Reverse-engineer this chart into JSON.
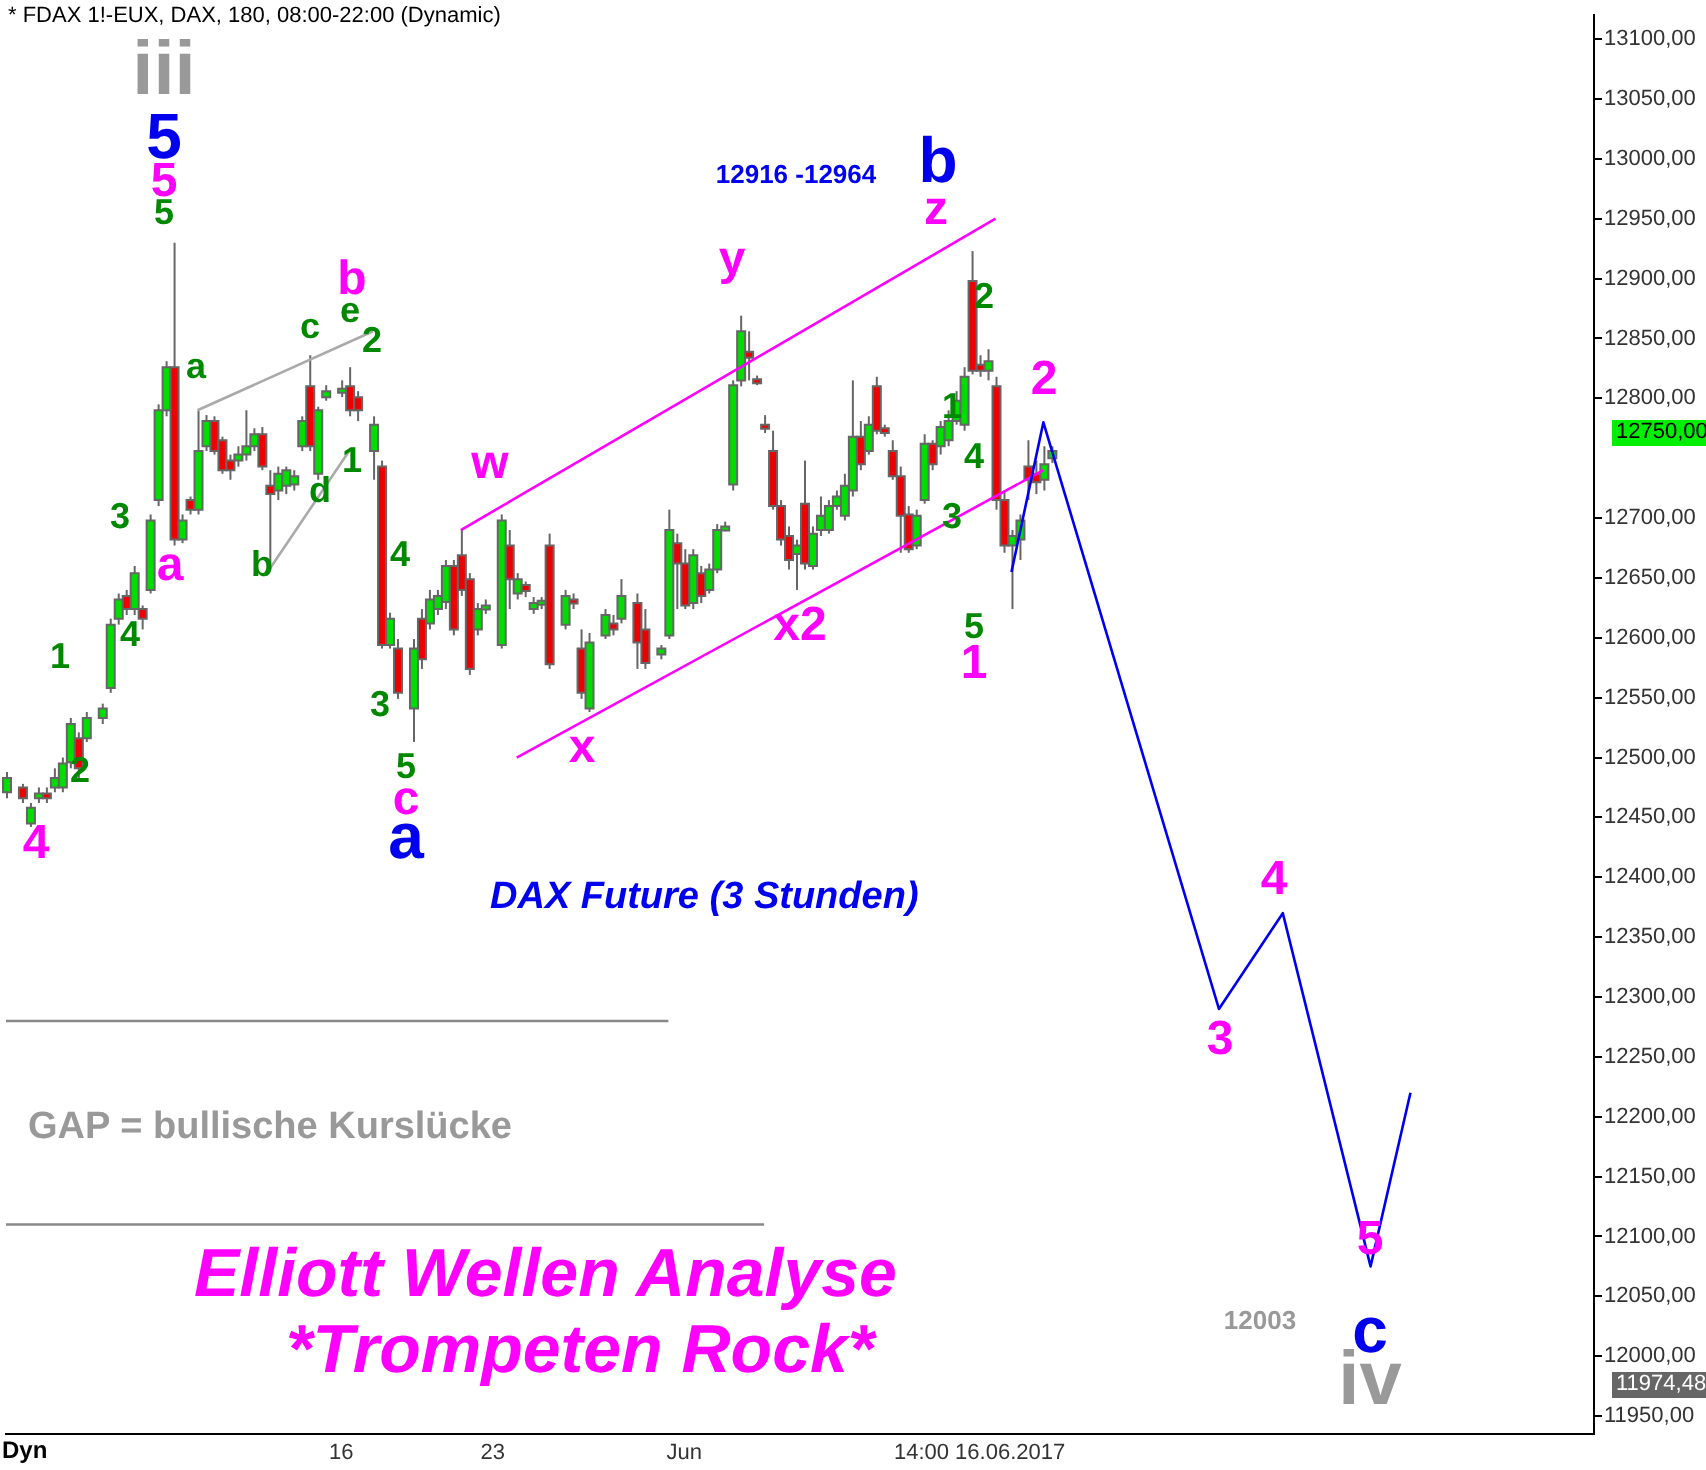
{
  "chart_data": {
    "type": "candlestick",
    "title": "* FDAX 1!-EUX, DAX, 180, 08:00-22:00 (Dynamic)",
    "subtitle": "DAX Future (3 Stunden)",
    "categories": [
      null,
      null,
      null,
      null,
      null,
      null,
      null,
      null,
      null,
      null,
      null,
      null,
      null,
      null,
      null,
      null,
      null,
      null,
      null,
      null,
      null,
      null,
      null,
      null,
      null,
      null,
      null,
      null,
      null,
      null,
      null,
      null,
      null,
      null,
      null,
      null,
      null,
      null,
      null,
      null,
      null,
      null,
      "16",
      null,
      null,
      null,
      null,
      null,
      null,
      null,
      null,
      null,
      null,
      null,
      null,
      null,
      null,
      null,
      null,
      null,
      null,
      "23",
      null,
      null,
      null,
      null,
      null,
      null,
      null,
      null,
      null,
      null,
      null,
      null,
      null,
      null,
      null,
      null,
      null,
      null,
      null,
      null,
      null,
      null,
      null,
      "Jun",
      null,
      null,
      null,
      null,
      null,
      null,
      null,
      null,
      null,
      null,
      null,
      null,
      null,
      null,
      null,
      null,
      null,
      null,
      null,
      null,
      null,
      null,
      null,
      null,
      null,
      null,
      null,
      null,
      null,
      null,
      null,
      null,
      null,
      null,
      null,
      null,
      "14:00 16.06.2017",
      null,
      null,
      null,
      null,
      null,
      null,
      null,
      null,
      null,
      null,
      null,
      null,
      null,
      null,
      null,
      null,
      null,
      null,
      null,
      null,
      null,
      null,
      null,
      null,
      null,
      null,
      null,
      null,
      null,
      null,
      null,
      null,
      null,
      null,
      null,
      null,
      null,
      null,
      null,
      null,
      null,
      null,
      null,
      null,
      null,
      null,
      null,
      null,
      null,
      null,
      null,
      null,
      null,
      null,
      null,
      null,
      null,
      null,
      null,
      null,
      null,
      null,
      null,
      null,
      null,
      null,
      null,
      null,
      null,
      null,
      null,
      null,
      null,
      null,
      null,
      null,
      null
    ],
    "ohlc": [
      [
        12471,
        12488,
        12466,
        12483
      ],
      null,
      [
        12475,
        12478,
        12462,
        12466
      ],
      [
        12445,
        12462,
        12442,
        12458
      ],
      [
        12466,
        12475,
        12462,
        12470
      ],
      [
        12470,
        12475,
        12462,
        12466
      ],
      [
        12475,
        12491,
        12471,
        12483
      ],
      [
        12475,
        12500,
        12471,
        12495
      ],
      [
        12496,
        12533,
        12491,
        12528
      ],
      [
        12516,
        12521,
        12483,
        12491
      ],
      [
        12516,
        12538,
        12513,
        12533
      ],
      null,
      [
        12533,
        12545,
        12528,
        12541
      ],
      [
        12558,
        12616,
        12554,
        12611
      ],
      [
        12616,
        12637,
        12611,
        12632
      ],
      [
        12635,
        12640,
        12619,
        12624
      ],
      [
        12624,
        12660,
        12619,
        12654
      ],
      [
        12624,
        12627,
        12607,
        12616
      ],
      [
        12640,
        12703,
        12637,
        12698
      ],
      [
        12715,
        12795,
        12710,
        12790
      ],
      [
        12790,
        12831,
        12785,
        12826
      ],
      [
        12826,
        12930,
        12677,
        12682
      ],
      [
        12682,
        12703,
        12679,
        12698
      ],
      [
        12715,
        12718,
        12703,
        12707
      ],
      [
        12707,
        12790,
        12703,
        12756
      ],
      [
        12760,
        12786,
        12756,
        12781
      ],
      [
        12781,
        12785,
        12753,
        12756
      ],
      [
        12765,
        12768,
        12737,
        12740
      ],
      [
        12748,
        12753,
        12732,
        12740
      ],
      [
        12748,
        12760,
        12743,
        12753
      ],
      [
        12753,
        12790,
        12748,
        12760
      ],
      [
        12760,
        12775,
        12756,
        12770
      ],
      [
        12770,
        12776,
        12740,
        12743
      ],
      [
        12727,
        12740,
        12657,
        12720
      ],
      [
        12723,
        12743,
        12715,
        12737
      ],
      [
        12727,
        12743,
        12720,
        12740
      ],
      [
        12728,
        12740,
        12723,
        12735
      ],
      [
        12760,
        12785,
        12756,
        12781
      ],
      [
        12810,
        12836,
        12756,
        12760
      ],
      [
        12737,
        12793,
        12732,
        12790
      ],
      [
        12801,
        12811,
        12798,
        12806
      ],
      null,
      [
        12806,
        12815,
        12801,
        12808
      ],
      [
        12810,
        12826,
        12785,
        12790
      ],
      [
        12801,
        12806,
        12781,
        12790
      ],
      null,
      [
        12756,
        12785,
        12732,
        12778
      ],
      [
        12743,
        12748,
        12591,
        12594
      ],
      [
        12594,
        12621,
        12591,
        12616
      ],
      [
        12591,
        12599,
        12549,
        12554
      ],
      null,
      [
        12541,
        12599,
        12513,
        12591
      ],
      [
        12616,
        12624,
        12574,
        12582
      ],
      [
        12612,
        12640,
        12607,
        12632
      ],
      [
        12624,
        12640,
        12619,
        12635
      ],
      [
        12630,
        12665,
        12624,
        12660
      ],
      [
        12660,
        12665,
        12602,
        12607
      ],
      [
        12669,
        12690,
        12635,
        12640
      ],
      [
        12649,
        12654,
        12569,
        12574
      ],
      [
        12607,
        12629,
        12602,
        12624
      ],
      [
        12624,
        12632,
        12620,
        12627
      ],
      null,
      [
        12594,
        12703,
        12591,
        12698
      ],
      [
        12677,
        12690,
        12624,
        12649
      ],
      [
        12637,
        12654,
        12632,
        12649
      ],
      [
        12644,
        12647,
        12634,
        12639
      ],
      [
        12624,
        12634,
        12620,
        12629
      ],
      [
        12629,
        12634,
        12624,
        12631
      ],
      [
        12677,
        12687,
        12574,
        12578
      ],
      null,
      [
        12611,
        12640,
        12607,
        12635
      ],
      [
        12632,
        12637,
        12624,
        12629
      ],
      [
        12591,
        12607,
        12549,
        12554
      ],
      [
        12541,
        12604,
        12538,
        12596
      ],
      null,
      [
        12602,
        12624,
        12599,
        12619
      ],
      [
        12612,
        12619,
        12602,
        12607
      ],
      [
        12616,
        12649,
        12612,
        12635
      ],
      null,
      [
        12629,
        12637,
        12574,
        12596
      ],
      [
        12607,
        12624,
        12574,
        12579
      ],
      null,
      [
        12586,
        12594,
        12582,
        12591
      ],
      [
        12602,
        12707,
        12599,
        12690
      ],
      [
        12679,
        12687,
        12624,
        12662
      ],
      [
        12662,
        12674,
        12624,
        12627
      ],
      [
        12629,
        12674,
        12624,
        12669
      ],
      [
        12654,
        12660,
        12629,
        12635
      ],
      [
        12640,
        12662,
        12637,
        12657
      ],
      [
        12657,
        12695,
        12654,
        12690
      ],
      [
        12690,
        12697,
        12689,
        12693
      ],
      [
        12728,
        12815,
        12723,
        12811
      ],
      [
        12815,
        12869,
        12810,
        12856
      ],
      [
        12839,
        12856,
        12815,
        12834
      ],
      [
        12816,
        12819,
        12811,
        12813
      ],
      [
        12778,
        12786,
        12771,
        12775
      ],
      [
        12756,
        12773,
        12707,
        12710
      ],
      [
        12710,
        12715,
        12677,
        12682
      ],
      [
        12685,
        12693,
        12657,
        12665
      ],
      [
        12670,
        12682,
        12640,
        12677
      ],
      [
        12712,
        12748,
        12657,
        12662
      ],
      [
        12660,
        12693,
        12657,
        12687
      ],
      [
        12690,
        12718,
        12685,
        12702
      ],
      [
        12690,
        12715,
        12687,
        12710
      ],
      [
        12710,
        12723,
        12707,
        12718
      ],
      [
        12702,
        12737,
        12698,
        12727
      ],
      [
        12723,
        12815,
        12718,
        12768
      ],
      [
        12768,
        12781,
        12740,
        12745
      ],
      [
        12756,
        12785,
        12753,
        12778
      ],
      [
        12810,
        12818,
        12770,
        12773
      ],
      [
        12775,
        12778,
        12768,
        12771
      ],
      [
        12756,
        12765,
        12732,
        12735
      ],
      [
        12735,
        12743,
        12671,
        12702
      ],
      [
        12703,
        12710,
        12671,
        12674
      ],
      [
        12677,
        12707,
        12674,
        12702
      ],
      [
        12715,
        12770,
        12712,
        12762
      ],
      [
        12762,
        12765,
        12740,
        12745
      ],
      [
        12760,
        12781,
        12753,
        12776
      ],
      [
        12765,
        12790,
        12760,
        12781
      ],
      [
        12781,
        12806,
        12778,
        12798
      ],
      [
        12778,
        12826,
        12773,
        12818
      ],
      [
        12898,
        12923,
        12820,
        12823
      ],
      [
        12828,
        12836,
        12818,
        12823
      ],
      [
        12823,
        12841,
        12815,
        12831
      ],
      [
        12810,
        12818,
        12707,
        12715
      ],
      [
        12715,
        12723,
        12671,
        12677
      ],
      [
        12677,
        12690,
        12624,
        12685
      ],
      [
        12682,
        12703,
        12665,
        12698
      ],
      [
        12743,
        12765,
        12715,
        12732
      ],
      [
        12737,
        12748,
        12720,
        12730
      ],
      [
        12732,
        12760,
        12723,
        12745
      ],
      [
        12750,
        12760,
        12746,
        12756
      ],
      null,
      null,
      null,
      null,
      null,
      null,
      null,
      null,
      null,
      null,
      null,
      null,
      null,
      null,
      null,
      null,
      null,
      null,
      null,
      null,
      null,
      null,
      null,
      null,
      null,
      null,
      null,
      null,
      null,
      null,
      null,
      null,
      null,
      null,
      null,
      null,
      null,
      null,
      null,
      null,
      null,
      null,
      null,
      null,
      null,
      null,
      null,
      null,
      null,
      null,
      null,
      null,
      null,
      null,
      null,
      null,
      null,
      null,
      null,
      null,
      null,
      null,
      null,
      null,
      null,
      null,
      null,
      null
    ],
    "series": [
      {
        "type": "line",
        "color": "#0000ee",
        "values": [
          null,
          null,
          null,
          null,
          null,
          null,
          null,
          null,
          null,
          null,
          null,
          null,
          null,
          null,
          null,
          null,
          null,
          null,
          null,
          null,
          null,
          null,
          null,
          null,
          null,
          null,
          null,
          null,
          null,
          null,
          null,
          null,
          null,
          null,
          null,
          null,
          null,
          null,
          null,
          null,
          null,
          null,
          null,
          null,
          null,
          null,
          null,
          null,
          null,
          null,
          null,
          null,
          null,
          null,
          null,
          null,
          null,
          null,
          null,
          null,
          null,
          null,
          null,
          null,
          null,
          null,
          null,
          null,
          null,
          null,
          null,
          null,
          null,
          null,
          null,
          null,
          null,
          null,
          null,
          null,
          null,
          null,
          null,
          null,
          null,
          null,
          null,
          null,
          null,
          null,
          null,
          null,
          null,
          null,
          null,
          null,
          null,
          null,
          null,
          null,
          null,
          null,
          null,
          null,
          null,
          null,
          null,
          null,
          null,
          null,
          null,
          null,
          null,
          null,
          null,
          null,
          null,
          null,
          null,
          null,
          null,
          null,
          null,
          null,
          null,
          null,
          12655,
          null,
          null,
          null,
          12780,
          null,
          null,
          null,
          null,
          null,
          null,
          null,
          null,
          null,
          null,
          null,
          null,
          null,
          null,
          null,
          null,
          null,
          null,
          null,
          null,
          null,
          12290,
          null,
          null,
          null,
          null,
          null,
          null,
          null,
          12370,
          null,
          null,
          null,
          null,
          null,
          null,
          null,
          null,
          null,
          null,
          12075,
          null,
          null,
          null,
          null,
          12220,
          null,
          null,
          null,
          null,
          null,
          null,
          null,
          null,
          null,
          null,
          null,
          null,
          null,
          null,
          null,
          null,
          null,
          null,
          null,
          null,
          null,
          null,
          null
        ]
      },
      {
        "type": "line",
        "color": "#ff00ff",
        "values": [
          null,
          null,
          null,
          null,
          null,
          null,
          null,
          null,
          null,
          null,
          null,
          null,
          null,
          null,
          null,
          null,
          null,
          null,
          null,
          null,
          null,
          null,
          null,
          null,
          null,
          null,
          null,
          null,
          null,
          null,
          null,
          null,
          null,
          null,
          null,
          null,
          null,
          null,
          null,
          null,
          null,
          null,
          null,
          null,
          null,
          null,
          null,
          null,
          null,
          null,
          null,
          null,
          null,
          null,
          null,
          null,
          null,
          12690,
          null,
          null,
          null,
          null,
          null,
          null,
          null,
          null,
          null,
          null,
          null,
          null,
          null,
          null,
          null,
          null,
          null,
          null,
          null,
          null,
          null,
          null,
          null,
          null,
          null,
          null,
          null,
          null,
          null,
          null,
          null,
          null,
          null,
          null,
          null,
          null,
          null,
          null,
          null,
          null,
          null,
          null,
          null,
          null,
          null,
          null,
          null,
          null,
          null,
          null,
          null,
          null,
          null,
          null,
          null,
          null,
          null,
          null,
          null,
          null,
          null,
          null,
          null,
          null,
          null,
          null,
          12950,
          null,
          null,
          null,
          null,
          null,
          null,
          null,
          null,
          null,
          null,
          null,
          null,
          null,
          null,
          null,
          null,
          null,
          null,
          null,
          null,
          null,
          null,
          null,
          null,
          null,
          null,
          null,
          null,
          null,
          null,
          null,
          null,
          null,
          null,
          null,
          null,
          null,
          null,
          null,
          null,
          null,
          null,
          null,
          null,
          null,
          null,
          null,
          null,
          null,
          null,
          null,
          null,
          null,
          null,
          null,
          null,
          null,
          null,
          null,
          null,
          null,
          null,
          null,
          null,
          null,
          null,
          null,
          null,
          null,
          null,
          null,
          null,
          null,
          null,
          null
        ]
      },
      {
        "type": "line",
        "color": "#ff00ff",
        "values": [
          null,
          null,
          null,
          null,
          null,
          null,
          null,
          null,
          null,
          null,
          null,
          null,
          null,
          null,
          null,
          null,
          null,
          null,
          null,
          null,
          null,
          null,
          null,
          null,
          null,
          null,
          null,
          null,
          null,
          null,
          null,
          null,
          null,
          null,
          null,
          null,
          null,
          null,
          null,
          null,
          null,
          null,
          null,
          null,
          null,
          null,
          null,
          null,
          null,
          null,
          null,
          null,
          null,
          null,
          null,
          null,
          null,
          null,
          null,
          null,
          null,
          null,
          null,
          null,
          12500,
          null,
          null,
          null,
          null,
          null,
          null,
          null,
          null,
          null,
          null,
          null,
          null,
          null,
          null,
          null,
          null,
          null,
          null,
          null,
          null,
          null,
          null,
          null,
          null,
          null,
          null,
          null,
          null,
          null,
          null,
          null,
          null,
          null,
          null,
          null,
          null,
          null,
          null,
          null,
          null,
          null,
          null,
          null,
          null,
          null,
          null,
          null,
          null,
          null,
          null,
          null,
          null,
          null,
          null,
          null,
          null,
          null,
          null,
          null,
          null,
          null,
          null,
          null,
          null,
          null,
          12740,
          null,
          null,
          null,
          null,
          null,
          null,
          null,
          null,
          null,
          null,
          null,
          null,
          null,
          null,
          null,
          null,
          null,
          null,
          null,
          null,
          null,
          null,
          null,
          null,
          null,
          null,
          null,
          null,
          null,
          null,
          null,
          null,
          null,
          null,
          null,
          null,
          null,
          null,
          null,
          null,
          null,
          null,
          null,
          null,
          null,
          null,
          null,
          null,
          null,
          null,
          null,
          null,
          null,
          null,
          null,
          null,
          null,
          null,
          null,
          null,
          null,
          null,
          null,
          null,
          null,
          null,
          null,
          null,
          null
        ]
      },
      {
        "type": "line",
        "color": "#aaaaaa",
        "values": [
          null,
          null,
          null,
          null,
          null,
          null,
          null,
          null,
          null,
          null,
          null,
          null,
          null,
          null,
          null,
          null,
          null,
          null,
          null,
          null,
          null,
          null,
          null,
          null,
          12790,
          null,
          null,
          null,
          null,
          null,
          null,
          null,
          null,
          null,
          null,
          null,
          null,
          null,
          null,
          null,
          null,
          null,
          null,
          null,
          null,
          null,
          12856,
          null,
          null,
          null,
          null,
          null,
          null,
          null,
          null,
          null,
          null,
          null,
          null,
          null,
          null,
          null,
          null,
          null,
          null,
          null,
          null,
          null,
          null,
          null,
          null,
          null,
          null,
          null,
          null,
          null,
          null,
          null,
          null,
          null,
          null,
          null,
          null,
          null,
          null,
          null,
          null,
          null,
          null,
          null,
          null,
          null,
          null,
          null,
          null,
          null,
          null,
          null,
          null,
          null,
          null,
          null,
          null,
          null,
          null,
          null,
          null,
          null,
          null,
          null,
          null,
          null,
          null,
          null,
          null,
          null,
          null,
          null,
          null,
          null,
          null,
          null,
          null,
          null,
          null,
          null,
          null,
          null,
          null,
          null,
          null,
          null,
          null,
          null,
          null,
          null,
          null,
          null,
          null,
          null,
          null,
          null,
          null,
          null,
          null,
          null,
          null,
          null,
          null,
          null,
          null,
          null,
          null,
          null,
          null,
          null,
          null,
          null,
          null,
          null,
          null,
          null,
          null,
          null,
          null,
          null,
          null,
          null,
          null,
          null,
          null,
          null,
          null,
          null,
          null,
          null,
          null,
          null,
          null,
          null,
          null,
          null,
          null,
          null,
          null,
          null,
          null,
          null,
          null,
          null,
          null,
          null,
          null,
          null,
          null,
          null,
          null,
          null,
          null,
          null
        ]
      },
      {
        "type": "line",
        "color": "#aaaaaa",
        "values": [
          null,
          null,
          null,
          null,
          null,
          null,
          null,
          null,
          null,
          null,
          null,
          null,
          null,
          null,
          null,
          null,
          null,
          null,
          null,
          null,
          null,
          null,
          null,
          null,
          null,
          null,
          null,
          null,
          null,
          null,
          null,
          null,
          null,
          12657,
          null,
          null,
          null,
          null,
          null,
          null,
          null,
          null,
          null,
          12756,
          null,
          null,
          null,
          null,
          null,
          null,
          null,
          null,
          null,
          null,
          null,
          null,
          null,
          null,
          null,
          null,
          null,
          null,
          null,
          null,
          null,
          null,
          null,
          null,
          null,
          null,
          null,
          null,
          null,
          null,
          null,
          null,
          null,
          null,
          null,
          null,
          null,
          null,
          null,
          null,
          null,
          null,
          null,
          null,
          null,
          null,
          null,
          null,
          null,
          null,
          null,
          null,
          null,
          null,
          null,
          null,
          null,
          null,
          null,
          null,
          null,
          null,
          null,
          null,
          null,
          null,
          null,
          null,
          null,
          null,
          null,
          null,
          null,
          null,
          null,
          null,
          null,
          null,
          null,
          null,
          null,
          null,
          null,
          null,
          null,
          null,
          null,
          null,
          null,
          null,
          null,
          null,
          null,
          null,
          null,
          null,
          null,
          null,
          null,
          null,
          null,
          null,
          null,
          null,
          null,
          null,
          null,
          null,
          null,
          null,
          null,
          null,
          null,
          null,
          null,
          null,
          null,
          null,
          null,
          null,
          null,
          null,
          null,
          null,
          null,
          null,
          null,
          null,
          null,
          null,
          null,
          null,
          null,
          null,
          null,
          null,
          null,
          null,
          null,
          null,
          null,
          null,
          null,
          null,
          null,
          null,
          null,
          null,
          null,
          null,
          null,
          null,
          null,
          null,
          null,
          null
        ]
      },
      {
        "type": "line",
        "color": "#888888",
        "values": [
          12280,
          null,
          null,
          null,
          null,
          null,
          null,
          null,
          null,
          null,
          null,
          null,
          null,
          null,
          null,
          null,
          null,
          null,
          null,
          null,
          null,
          null,
          null,
          null,
          null,
          null,
          null,
          null,
          null,
          null,
          null,
          null,
          null,
          null,
          null,
          null,
          null,
          null,
          null,
          null,
          null,
          null,
          null,
          null,
          null,
          null,
          null,
          null,
          null,
          null,
          null,
          null,
          null,
          null,
          null,
          null,
          null,
          null,
          null,
          null,
          null,
          null,
          null,
          null,
          null,
          null,
          null,
          null,
          null,
          null,
          null,
          null,
          null,
          null,
          null,
          null,
          null,
          null,
          null,
          null,
          null,
          null,
          null,
          12280,
          null,
          null,
          null,
          null,
          null,
          null,
          null,
          null,
          null,
          null,
          null,
          null,
          null,
          null,
          null,
          null,
          null,
          null,
          null,
          null,
          null,
          null,
          null,
          null,
          null,
          null,
          null,
          null,
          null,
          null,
          null,
          null,
          null,
          null,
          null,
          null,
          null,
          null,
          null,
          null,
          null,
          null,
          null,
          null,
          null,
          null,
          null,
          null,
          null,
          null,
          null,
          null,
          null,
          null,
          null,
          null,
          null,
          null,
          null,
          null,
          null,
          null,
          null,
          null,
          null,
          null,
          null,
          null,
          null,
          null,
          null,
          null,
          null,
          null,
          null,
          null,
          null,
          null,
          null,
          null,
          null,
          null,
          null,
          null,
          null,
          null,
          null,
          null,
          null,
          null,
          null,
          null,
          null,
          null,
          null,
          null,
          null,
          null,
          null,
          null,
          null,
          null,
          null,
          null,
          null,
          null,
          null,
          null,
          null,
          null,
          null,
          null,
          null,
          null,
          null,
          null
        ]
      },
      {
        "type": "line",
        "color": "#888888",
        "values": [
          12110,
          null,
          null,
          null,
          null,
          null,
          null,
          null,
          null,
          null,
          null,
          null,
          null,
          null,
          null,
          null,
          null,
          null,
          null,
          null,
          null,
          null,
          null,
          null,
          null,
          null,
          null,
          null,
          null,
          null,
          null,
          null,
          null,
          null,
          null,
          null,
          null,
          null,
          null,
          null,
          null,
          null,
          null,
          null,
          null,
          null,
          null,
          null,
          null,
          null,
          null,
          null,
          null,
          null,
          null,
          null,
          null,
          null,
          null,
          null,
          null,
          null,
          null,
          null,
          null,
          null,
          null,
          null,
          null,
          null,
          null,
          null,
          null,
          null,
          null,
          null,
          null,
          null,
          null,
          null,
          null,
          null,
          null,
          null,
          null,
          null,
          null,
          null,
          null,
          null,
          null,
          null,
          null,
          null,
          null,
          12110,
          null,
          null,
          null,
          null,
          null,
          null,
          null,
          null,
          null,
          null,
          null,
          null,
          null,
          null,
          null,
          null,
          null,
          null,
          null,
          null,
          null,
          null,
          null,
          null,
          null,
          null,
          null,
          null,
          null,
          null,
          null,
          null,
          null,
          null,
          null,
          null,
          null,
          null,
          null,
          null,
          null,
          null,
          null,
          null,
          null,
          null,
          null,
          null,
          null,
          null,
          null,
          null,
          null,
          null,
          null,
          null,
          null,
          null,
          null,
          null,
          null,
          null,
          null,
          null,
          null,
          null,
          null,
          null,
          null,
          null,
          null,
          null,
          null,
          null,
          null,
          null,
          null,
          null,
          null,
          null,
          null,
          null,
          null,
          null,
          null,
          null,
          null,
          null,
          null,
          null,
          null,
          null,
          null,
          null,
          null,
          null,
          null,
          null,
          null,
          null,
          null,
          null,
          null,
          null
        ]
      }
    ],
    "ylim": [
      11935,
      13120
    ],
    "yticks": [
      {
        "value": 11950,
        "label": "11950,00"
      },
      {
        "value": 12000,
        "label": "12000,00"
      },
      {
        "value": 12050,
        "label": "12050,00"
      },
      {
        "value": 12100,
        "label": "12100,00"
      },
      {
        "value": 12150,
        "label": "12150,00"
      },
      {
        "value": 12200,
        "label": "12200,00"
      },
      {
        "value": 12250,
        "label": "12250,00"
      },
      {
        "value": 12300,
        "label": "12300,00"
      },
      {
        "value": 12350,
        "label": "12350,00"
      },
      {
        "value": 12400,
        "label": "12400,00"
      },
      {
        "value": 12450,
        "label": "12450,00"
      },
      {
        "value": 12500,
        "label": "12500,00"
      },
      {
        "value": 12550,
        "label": "12550,00"
      },
      {
        "value": 12600,
        "label": "12600,00"
      },
      {
        "value": 12650,
        "label": "12650,00"
      },
      {
        "value": 12700,
        "label": "12700,00"
      },
      {
        "value": 12800,
        "label": "12800,00"
      },
      {
        "value": 12850,
        "label": "12850,00"
      },
      {
        "value": 12900,
        "label": "12900,00"
      },
      {
        "value": 12950,
        "label": "12950,00"
      },
      {
        "value": 13000,
        "label": "13000,00"
      },
      {
        "value": 13050,
        "label": "13050,00"
      },
      {
        "value": 13100,
        "label": "13100,00"
      }
    ],
    "grid": false,
    "legend": false,
    "marker": "none",
    "annotations": [
      "iii",
      "5",
      "5",
      "5",
      "a",
      "3",
      "4",
      "1",
      "2",
      "4",
      "a",
      "c",
      "b",
      "e",
      "2",
      "1",
      "d",
      "b",
      "4",
      "3",
      "5",
      "c",
      "a",
      "w",
      "x",
      "y",
      "x2",
      "12916 -12964",
      "b",
      "z",
      "2",
      "1",
      "4",
      "3",
      "5",
      "1",
      "2",
      "3",
      "4",
      "5",
      "c",
      "iv",
      "12003",
      "GAP = bullische Kurslücke",
      "Elliott Wellen Analyse",
      "*Trompeten Rock*",
      "Dyn",
      "12750,00",
      "11974,48"
    ]
  }
}
